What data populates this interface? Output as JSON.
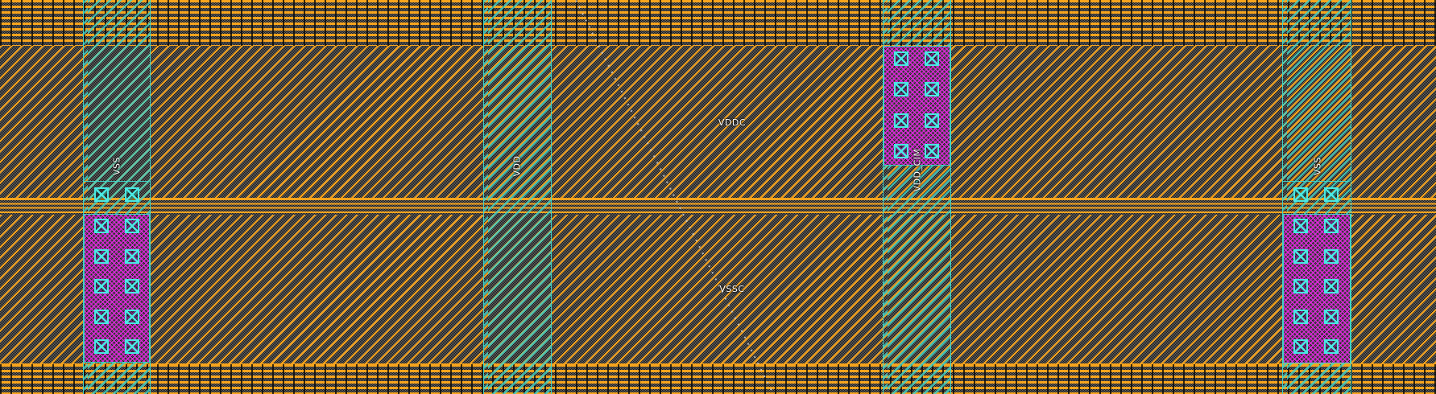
{
  "viewport": {
    "description": "IC layout editor canvas showing power grid metal",
    "net_labels": {
      "upper_rail": "VDDC",
      "lower_rail": "VSSC"
    },
    "straps": [
      {
        "label": "VSS",
        "via_pairs": 6
      },
      {
        "label": "VDD",
        "via_pairs": 0
      },
      {
        "label": "VDD_CIM",
        "via_pairs": 4
      },
      {
        "label": "VSS",
        "via_pairs": 6
      }
    ],
    "colors": {
      "metal_orange": "#f7a41d",
      "strap_teal": "#3fd2c7",
      "via_region_magenta": "#e428e2",
      "via_cyan": "#49e8e3",
      "label_white": "#ffffff",
      "background_dark": "#151515"
    }
  }
}
